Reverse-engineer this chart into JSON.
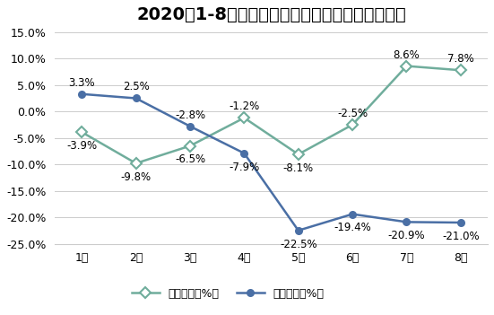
{
  "title": "2020年1-8月鸡蛋（普通鲜蛋）集贸市场价格增速",
  "categories": [
    "1月",
    "2月",
    "3月",
    "4月",
    "5月",
    "6月",
    "7月",
    "8月"
  ],
  "huan_bi": [
    -3.9,
    -9.8,
    -6.5,
    -1.2,
    -8.1,
    -2.5,
    8.6,
    7.8
  ],
  "tong_bi": [
    3.3,
    2.5,
    -2.8,
    -7.9,
    -22.5,
    -19.4,
    -20.9,
    -21.0
  ],
  "huan_bi_color": "#70ad9c",
  "tong_bi_color": "#4a6fa5",
  "huan_bi_label": "环比增长（%）",
  "tong_bi_label": "同比增长（%）",
  "ylim": [
    -25.0,
    15.0
  ],
  "yticks": [
    -25.0,
    -20.0,
    -15.0,
    -10.0,
    -5.0,
    0.0,
    5.0,
    10.0,
    15.0
  ],
  "background_color": "#ffffff",
  "grid_color": "#cccccc",
  "title_fontsize": 14,
  "label_fontsize": 8.5,
  "legend_fontsize": 9,
  "tick_fontsize": 9
}
